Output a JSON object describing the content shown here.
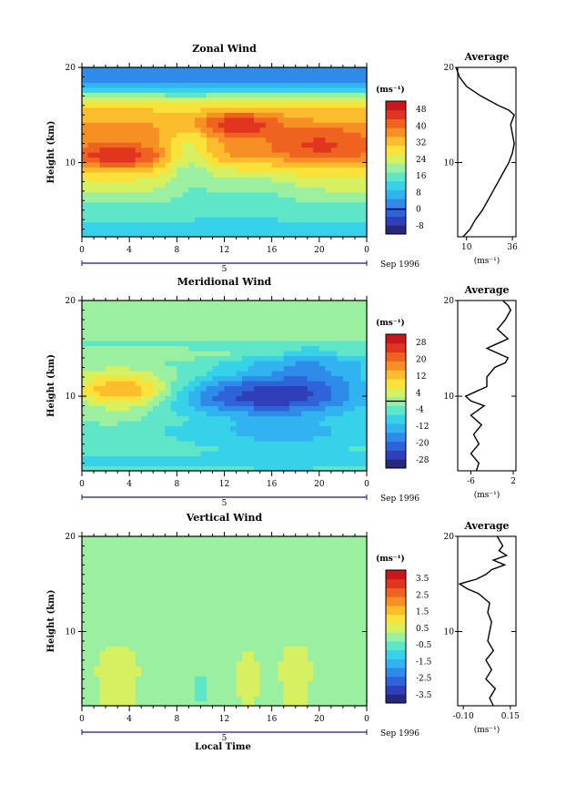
{
  "xlabel": "Local Time",
  "ylabel": "Height (km)",
  "date_label": "Sep 1996",
  "day_label": "5",
  "units": "(ms⁻¹)",
  "average_title": "Average",
  "x_ticks": [
    "0",
    "4",
    "8",
    "12",
    "16",
    "20",
    "0"
  ],
  "y_ticks": [
    "20",
    "10"
  ],
  "chart_data": [
    {
      "type": "heatmap",
      "title": "Zonal Wind",
      "xlabel": "Local Time",
      "ylabel": "Height (km)",
      "xlim": [
        0,
        24
      ],
      "ylim": [
        2.2,
        20
      ],
      "colorbar_label": "(ms⁻¹)",
      "colorbar_ticks": [
        48,
        40,
        32,
        24,
        16,
        8,
        0,
        -8
      ],
      "colorbar_range": [
        -12,
        52
      ],
      "colorbar_markers": [
        0
      ],
      "colors": [
        "#26287a",
        "#2e3fb8",
        "#2f63d8",
        "#2f8be8",
        "#31b3ef",
        "#37d2e8",
        "#5fe6c8",
        "#9af0a0",
        "#d6f060",
        "#fbe23a",
        "#fcbd2c",
        "#f79024",
        "#ef6320",
        "#e0351f",
        "#c8181d"
      ],
      "field": {
        "layers": [
          {
            "z": 19.6,
            "v": 5
          },
          {
            "z": 18.8,
            "v": 4
          },
          {
            "z": 17.8,
            "v": 10
          },
          {
            "z": 16.8,
            "v": 22
          },
          {
            "z": 15.8,
            "v": 30
          },
          {
            "z": 14.6,
            "v": 34
          },
          {
            "z": 13.4,
            "v": 37
          },
          {
            "z": 12.2,
            "v": 36
          },
          {
            "z": 11.0,
            "v": 38
          },
          {
            "z": 9.8,
            "v": 33
          },
          {
            "z": 8.5,
            "v": 27
          },
          {
            "z": 7.0,
            "v": 22
          },
          {
            "z": 5.5,
            "v": 17
          },
          {
            "z": 4.0,
            "v": 14
          },
          {
            "z": 2.6,
            "v": 10
          }
        ],
        "features": [
          {
            "t": 13,
            "z": 14.2,
            "dv": 12,
            "wt": 2.5,
            "wz": 0.9
          },
          {
            "t": 3,
            "z": 10.6,
            "dv": 10,
            "wt": 2.5,
            "wz": 1.0
          },
          {
            "t": 20,
            "z": 12.0,
            "dv": 8,
            "wt": 3.0,
            "wz": 1.0
          },
          {
            "t": 9,
            "z": 11.0,
            "dv": -12,
            "wt": 1.5,
            "wz": 2.5
          },
          {
            "t": 14,
            "z": 8.0,
            "dv": -5,
            "wt": 3.0,
            "wz": 2.0
          }
        ]
      },
      "average": {
        "xlim": [
          5,
          38
        ],
        "x_ticks": [
          10,
          36
        ],
        "x_tick_labels": [
          "10",
          "36"
        ],
        "xlabel": "(ms⁻¹)",
        "z": [
          2.2,
          3,
          4,
          5,
          6,
          7,
          8,
          9,
          10,
          11,
          12,
          13,
          14,
          15,
          15.5,
          16,
          17,
          18,
          19,
          20
        ],
        "v": [
          8,
          12,
          15,
          19,
          22,
          25,
          28,
          31,
          34,
          36,
          37,
          36,
          35,
          37,
          34,
          28,
          18,
          10,
          6,
          4
        ]
      }
    },
    {
      "type": "heatmap",
      "title": "Meridional Wind",
      "xlabel": "Local Time",
      "ylabel": "Height (km)",
      "xlim": [
        0,
        24
      ],
      "ylim": [
        2.2,
        20
      ],
      "colorbar_label": "(ms⁻¹)",
      "colorbar_ticks": [
        28,
        20,
        12,
        4,
        -4,
        -12,
        -20,
        -28
      ],
      "colorbar_range": [
        -32,
        32
      ],
      "colorbar_markers": [
        0
      ],
      "colors": [
        "#26287a",
        "#2e3fb8",
        "#2f63d8",
        "#2f8be8",
        "#31b3ef",
        "#37d2e8",
        "#5fe6c8",
        "#9af0a0",
        "#d6f060",
        "#fbe23a",
        "#fcbd2c",
        "#f79024",
        "#ef6320",
        "#e0351f",
        "#c8181d"
      ],
      "field": {
        "layers": [
          {
            "z": 19.5,
            "v": 1
          },
          {
            "z": 18.5,
            "v": 2
          },
          {
            "z": 17.5,
            "v": -2
          },
          {
            "z": 16.5,
            "v": 2
          },
          {
            "z": 15.5,
            "v": -4
          },
          {
            "z": 14.5,
            "v": 1
          },
          {
            "z": 13.5,
            "v": -2
          },
          {
            "z": 12.5,
            "v": -1
          },
          {
            "z": 11.5,
            "v": -2
          },
          {
            "z": 10.5,
            "v": -3
          },
          {
            "z": 9.5,
            "v": -6
          },
          {
            "z": 8.5,
            "v": -5
          },
          {
            "z": 7.5,
            "v": -4
          },
          {
            "z": 6.5,
            "v": -7
          },
          {
            "z": 5.5,
            "v": -6
          },
          {
            "z": 4.5,
            "v": -5
          },
          {
            "z": 3.5,
            "v": -7
          },
          {
            "z": 2.5,
            "v": -6
          }
        ],
        "features": [
          {
            "t": 3.5,
            "z": 10.5,
            "dv": 19,
            "wt": 3.0,
            "wz": 1.4
          },
          {
            "t": 14.5,
            "z": 10.3,
            "dv": -18,
            "wt": 5.0,
            "wz": 1.5
          },
          {
            "t": 20,
            "z": 11.5,
            "dv": -10,
            "wt": 4.0,
            "wz": 1.8
          },
          {
            "t": 19,
            "z": 13.8,
            "dv": -7,
            "wt": 5.0,
            "wz": 1.0
          },
          {
            "t": 17,
            "z": 6.5,
            "dv": -6,
            "wt": 4.0,
            "wz": 1.8
          },
          {
            "t": 2,
            "z": 6.0,
            "dv": 4,
            "wt": 2.5,
            "wz": 1.0
          }
        ]
      },
      "average": {
        "xlim": [
          -8.5,
          2.5
        ],
        "x_ticks": [
          -6,
          2
        ],
        "x_tick_labels": [
          "-6",
          "2"
        ],
        "xlabel": "(ms⁻¹)",
        "z": [
          2.2,
          3,
          4,
          5,
          6,
          7,
          8,
          9,
          9.5,
          10,
          10.5,
          11,
          12,
          13,
          13.5,
          14,
          15,
          15.5,
          16,
          17,
          18,
          19,
          19.5,
          20
        ],
        "v": [
          -5,
          -4.5,
          -6,
          -4.5,
          -5.5,
          -4,
          -6,
          -3.5,
          -6,
          -7,
          -5,
          -3,
          -3,
          -1.5,
          0.5,
          1,
          -3,
          -1,
          1,
          -1,
          0.5,
          1.5,
          1,
          0
        ]
      }
    },
    {
      "type": "heatmap",
      "title": "Vertical Wind",
      "xlabel": "Local Time",
      "ylabel": "Height (km)",
      "xlim": [
        0,
        24
      ],
      "ylim": [
        2.2,
        20
      ],
      "colorbar_label": "(ms⁻¹)",
      "colorbar_ticks": [
        3.5,
        2.5,
        1.5,
        0.5,
        -0.5,
        -1.5,
        -2.5,
        -3.5
      ],
      "colorbar_range": [
        -4,
        4
      ],
      "colorbar_markers": [],
      "colors": [
        "#26287a",
        "#2e3fb8",
        "#2f63d8",
        "#2f8be8",
        "#31b3ef",
        "#37d2e8",
        "#5fe6c8",
        "#9af0a0",
        "#d6f060",
        "#fbe23a",
        "#fcbd2c",
        "#f79024",
        "#ef6320",
        "#e0351f",
        "#c8181d"
      ],
      "field": {
        "layers": [
          {
            "z": 19.5,
            "v": 0.1
          },
          {
            "z": 16.0,
            "v": -0.1
          },
          {
            "z": 12.0,
            "v": 0.0
          },
          {
            "z": 8.0,
            "v": 0.2
          },
          {
            "z": 4.0,
            "v": 0.1
          },
          {
            "z": 2.5,
            "v": 0.2
          }
        ],
        "features": [
          {
            "t": 14,
            "z": 5.0,
            "dv": 0.5,
            "wt": 0.6,
            "wz": 1.5
          },
          {
            "t": 10,
            "z": 4.0,
            "dv": -0.8,
            "wt": 0.5,
            "wz": 1.5
          },
          {
            "t": 18,
            "z": 5.0,
            "dv": 0.5,
            "wt": 0.8,
            "wz": 2.0
          },
          {
            "t": 3,
            "z": 5.0,
            "dv": 0.4,
            "wt": 1.2,
            "wz": 2.0
          }
        ]
      },
      "average": {
        "xlim": [
          -0.13,
          0.18
        ],
        "x_ticks": [
          -0.1,
          0.15
        ],
        "x_tick_labels": [
          "-0.10",
          "0.15"
        ],
        "xlabel": "(ms⁻¹)",
        "z": [
          2.2,
          3,
          4,
          5,
          6,
          7,
          8,
          9,
          10,
          11,
          12,
          13,
          14,
          14.5,
          15,
          15.5,
          16,
          16.5,
          17,
          17.5,
          18,
          18.5,
          19,
          20
        ],
        "v": [
          0.06,
          0.04,
          0.07,
          0.02,
          0.05,
          0.02,
          0.06,
          0.03,
          0.04,
          0.05,
          0.03,
          0.04,
          -0.02,
          -0.08,
          -0.12,
          -0.03,
          0.02,
          0.05,
          0.12,
          0.06,
          0.13,
          0.09,
          0.11,
          0.08
        ]
      }
    }
  ]
}
